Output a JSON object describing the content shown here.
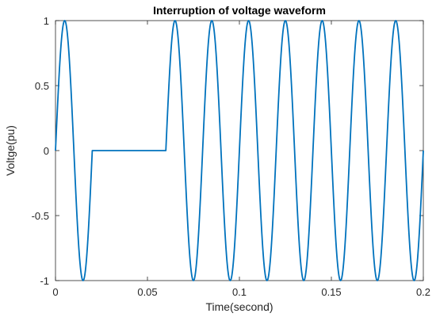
{
  "chart_data": {
    "type": "line",
    "title": "Interruption of voltage waveform",
    "xlabel": "Time(second)",
    "ylabel": "Voltge(pu)",
    "xlim": [
      0,
      0.2
    ],
    "ylim": [
      -1,
      1
    ],
    "x_ticks": [
      0,
      0.05,
      0.1,
      0.15,
      0.2
    ],
    "x_tick_labels": [
      "0",
      "0.05",
      "0.1",
      "0.15",
      "0.2"
    ],
    "y_ticks": [
      -1,
      -0.5,
      0,
      0.5,
      1
    ],
    "y_tick_labels": [
      "-1",
      "-0.5",
      "0",
      "0.5",
      "1"
    ],
    "grid": false,
    "series": [
      {
        "color": "#0072BD",
        "frequency_hz": 50,
        "amplitude": 1,
        "segments": [
          {
            "shape": "sine",
            "x_start": 0,
            "x_end": 0.02
          },
          {
            "shape": "flat",
            "x_start": 0.02,
            "x_end": 0.06,
            "value": 0
          },
          {
            "shape": "sine",
            "x_start": 0.06,
            "x_end": 0.2
          }
        ]
      }
    ]
  }
}
